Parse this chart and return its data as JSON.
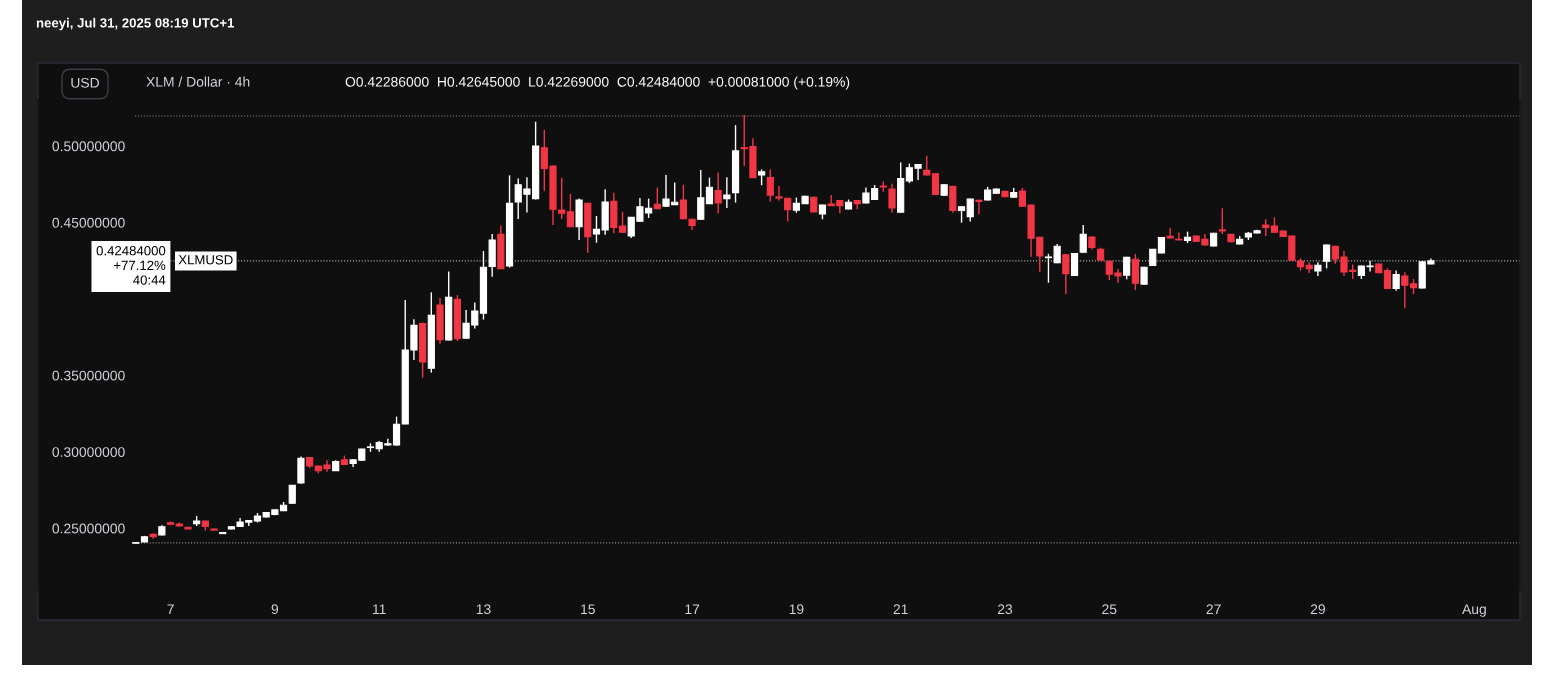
{
  "chart_data": {
    "type": "candlestick",
    "title": "XLM / Dollar · 4h",
    "subtitle": "O0.42286000  H0.42645000  L0.42269000  C0.42484000  +0.00081000 (+0.19%)",
    "annotations": [
      "neeyi, Jul 31, 2025 08:19 UTC+1",
      "USD",
      "0.42484000",
      "+77.12%",
      "40:44"
    ],
    "x": [
      "2025-07-06T08:00",
      "2025-07-06T12:00",
      "2025-07-06T16:00",
      "2025-07-06T20:00",
      "2025-07-07T00:00",
      "2025-07-07T04:00",
      "2025-07-07T08:00",
      "2025-07-07T12:00",
      "2025-07-07T16:00",
      "2025-07-07T20:00",
      "2025-07-08T00:00",
      "2025-07-08T04:00",
      "2025-07-08T08:00",
      "2025-07-08T12:00",
      "2025-07-08T16:00",
      "2025-07-08T20:00",
      "2025-07-09T00:00",
      "2025-07-09T04:00",
      "2025-07-09T08:00",
      "2025-07-09T12:00",
      "2025-07-09T16:00",
      "2025-07-09T20:00",
      "2025-07-10T00:00",
      "2025-07-10T04:00",
      "2025-07-10T08:00",
      "2025-07-10T12:00",
      "2025-07-10T16:00",
      "2025-07-10T20:00",
      "2025-07-11T00:00",
      "2025-07-11T04:00",
      "2025-07-11T08:00",
      "2025-07-11T12:00",
      "2025-07-11T16:00",
      "2025-07-11T20:00",
      "2025-07-12T00:00",
      "2025-07-12T04:00",
      "2025-07-12T08:00",
      "2025-07-12T12:00",
      "2025-07-12T16:00",
      "2025-07-12T20:00",
      "2025-07-13T00:00",
      "2025-07-13T04:00",
      "2025-07-13T08:00",
      "2025-07-13T12:00",
      "2025-07-13T16:00",
      "2025-07-13T20:00",
      "2025-07-14T00:00",
      "2025-07-14T04:00",
      "2025-07-14T08:00",
      "2025-07-14T12:00",
      "2025-07-14T16:00",
      "2025-07-14T20:00",
      "2025-07-15T00:00",
      "2025-07-15T04:00",
      "2025-07-15T08:00",
      "2025-07-15T12:00",
      "2025-07-15T16:00",
      "2025-07-15T20:00",
      "2025-07-16T00:00",
      "2025-07-16T04:00",
      "2025-07-16T08:00",
      "2025-07-16T12:00",
      "2025-07-16T16:00",
      "2025-07-16T20:00",
      "2025-07-17T00:00",
      "2025-07-17T04:00",
      "2025-07-17T08:00",
      "2025-07-17T12:00",
      "2025-07-17T16:00",
      "2025-07-17T20:00",
      "2025-07-18T00:00",
      "2025-07-18T04:00",
      "2025-07-18T08:00",
      "2025-07-18T12:00",
      "2025-07-18T16:00",
      "2025-07-18T20:00",
      "2025-07-19T00:00",
      "2025-07-19T04:00",
      "2025-07-19T08:00",
      "2025-07-19T12:00",
      "2025-07-19T16:00",
      "2025-07-19T20:00",
      "2025-07-20T00:00",
      "2025-07-20T04:00",
      "2025-07-20T08:00",
      "2025-07-20T12:00",
      "2025-07-20T16:00",
      "2025-07-20T20:00",
      "2025-07-21T00:00",
      "2025-07-21T04:00",
      "2025-07-21T08:00",
      "2025-07-21T12:00",
      "2025-07-21T16:00",
      "2025-07-21T20:00",
      "2025-07-22T00:00",
      "2025-07-22T04:00",
      "2025-07-22T08:00",
      "2025-07-22T12:00",
      "2025-07-22T16:00",
      "2025-07-22T20:00",
      "2025-07-23T00:00",
      "2025-07-23T04:00",
      "2025-07-23T08:00",
      "2025-07-23T12:00",
      "2025-07-23T16:00",
      "2025-07-23T20:00",
      "2025-07-24T00:00",
      "2025-07-24T04:00",
      "2025-07-24T08:00",
      "2025-07-24T12:00",
      "2025-07-24T16:00",
      "2025-07-24T20:00",
      "2025-07-25T00:00",
      "2025-07-25T04:00",
      "2025-07-25T08:00",
      "2025-07-25T12:00",
      "2025-07-25T16:00",
      "2025-07-25T20:00",
      "2025-07-26T00:00",
      "2025-07-26T04:00",
      "2025-07-26T08:00",
      "2025-07-26T12:00",
      "2025-07-26T16:00",
      "2025-07-26T20:00",
      "2025-07-27T00:00",
      "2025-07-27T04:00",
      "2025-07-27T08:00",
      "2025-07-27T12:00",
      "2025-07-27T16:00",
      "2025-07-27T20:00",
      "2025-07-28T00:00",
      "2025-07-28T04:00",
      "2025-07-28T08:00",
      "2025-07-28T12:00",
      "2025-07-28T16:00",
      "2025-07-28T20:00",
      "2025-07-29T00:00",
      "2025-07-29T04:00",
      "2025-07-29T08:00",
      "2025-07-29T12:00",
      "2025-07-29T16:00",
      "2025-07-29T20:00",
      "2025-07-30T00:00",
      "2025-07-30T04:00",
      "2025-07-30T08:00",
      "2025-07-30T12:00",
      "2025-07-30T16:00",
      "2025-07-30T20:00",
      "2025-07-31T00:00",
      "2025-07-31T04:00"
    ],
    "colors": [
      "#ffffff",
      "#ffffff",
      "#f23645",
      "#ffffff",
      "#f23645",
      "#f23645",
      "#f23645",
      "#ffffff",
      "#f23645",
      "#f23645",
      "#ffffff",
      "#ffffff",
      "#ffffff",
      "#ffffff",
      "#ffffff",
      "#ffffff",
      "#ffffff",
      "#ffffff",
      "#ffffff",
      "#ffffff",
      "#f23645",
      "#f23645",
      "#f23645",
      "#ffffff",
      "#f23645",
      "#ffffff",
      "#ffffff",
      "#ffffff",
      "#ffffff",
      "#ffffff",
      "#ffffff",
      "#ffffff",
      "#ffffff",
      "#f23645",
      "#ffffff",
      "#f23645",
      "#ffffff",
      "#f23645",
      "#ffffff",
      "#ffffff",
      "#ffffff",
      "#ffffff",
      "#f23645",
      "#ffffff",
      "#ffffff",
      "#ffffff",
      "#ffffff",
      "#f23645",
      "#f23645",
      "#f23645",
      "#f23645",
      "#ffffff",
      "#f23645",
      "#ffffff",
      "#ffffff",
      "#f23645",
      "#f23645",
      "#ffffff",
      "#ffffff",
      "#ffffff",
      "#f23645",
      "#ffffff",
      "#ffffff",
      "#f23645",
      "#f23645",
      "#ffffff",
      "#ffffff",
      "#f23645",
      "#ffffff",
      "#ffffff",
      "#f23645",
      "#f23645",
      "#ffffff",
      "#f23645",
      "#f23645",
      "#f23645",
      "#ffffff",
      "#ffffff",
      "#f23645",
      "#ffffff",
      "#f23645",
      "#f23645",
      "#ffffff",
      "#f23645",
      "#ffffff",
      "#ffffff",
      "#f23645",
      "#f23645",
      "#ffffff",
      "#ffffff",
      "#ffffff",
      "#f23645",
      "#f23645",
      "#ffffff",
      "#f23645",
      "#ffffff",
      "#ffffff",
      "#f23645",
      "#ffffff",
      "#ffffff",
      "#f23645",
      "#ffffff",
      "#f23645",
      "#f23645",
      "#f23645",
      "#ffffff",
      "#ffffff",
      "#f23645",
      "#ffffff",
      "#ffffff",
      "#f23645",
      "#f23645",
      "#f23645",
      "#f23645",
      "#ffffff",
      "#f23645",
      "#ffffff",
      "#ffffff",
      "#ffffff",
      "#f23645",
      "#f23645",
      "#ffffff",
      "#f23645",
      "#f23645",
      "#ffffff",
      "#f23645",
      "#f23645",
      "#ffffff",
      "#ffffff",
      "#ffffff",
      "#f23645",
      "#f23645",
      "#f23645",
      "#f23645",
      "#f23645",
      "#f23645",
      "#ffffff",
      "#ffffff",
      "#f23645",
      "#f23645",
      "#f23645",
      "#ffffff",
      "#ffffff",
      "#f23645",
      "#f23645",
      "#ffffff",
      "#f23645",
      "#f23645",
      "#ffffff",
      "#ffffff"
    ],
    "ohlc": [
      [
        0.2402,
        0.241,
        0.24,
        0.2406
      ],
      [
        0.241,
        0.245,
        0.2408,
        0.2444
      ],
      [
        0.246,
        0.2465,
        0.2432,
        0.2444
      ],
      [
        0.2456,
        0.252,
        0.2452,
        0.251
      ],
      [
        0.2535,
        0.2545,
        0.2522,
        0.2526
      ],
      [
        0.2528,
        0.2538,
        0.2512,
        0.2515
      ],
      [
        0.2506,
        0.2508,
        0.2494,
        0.2496
      ],
      [
        0.253,
        0.258,
        0.2515,
        0.2547
      ],
      [
        0.2547,
        0.255,
        0.2485,
        0.2512
      ],
      [
        0.2495,
        0.2497,
        0.2486,
        0.2488
      ],
      [
        0.2465,
        0.2474,
        0.2463,
        0.2472
      ],
      [
        0.2495,
        0.2512,
        0.2493,
        0.251
      ],
      [
        0.2512,
        0.2567,
        0.251,
        0.254
      ],
      [
        0.254,
        0.2552,
        0.2515,
        0.255
      ],
      [
        0.2548,
        0.26,
        0.2538,
        0.258
      ],
      [
        0.2574,
        0.2605,
        0.257,
        0.2602
      ],
      [
        0.259,
        0.2623,
        0.2585,
        0.262
      ],
      [
        0.2615,
        0.2672,
        0.2612,
        0.265
      ],
      [
        0.2663,
        0.2782,
        0.266,
        0.278
      ],
      [
        0.2796,
        0.297,
        0.2793,
        0.2958
      ],
      [
        0.2962,
        0.2966,
        0.2893,
        0.2907
      ],
      [
        0.2907,
        0.291,
        0.286,
        0.2877
      ],
      [
        0.2914,
        0.2945,
        0.287,
        0.289
      ],
      [
        0.2877,
        0.2945,
        0.2875,
        0.2936
      ],
      [
        0.2947,
        0.2975,
        0.2914,
        0.2917
      ],
      [
        0.2923,
        0.295,
        0.29,
        0.2947
      ],
      [
        0.2945,
        0.302,
        0.2942,
        0.3018
      ],
      [
        0.3028,
        0.3055,
        0.3,
        0.3032
      ],
      [
        0.3021,
        0.307,
        0.3,
        0.306
      ],
      [
        0.3045,
        0.3085,
        0.304,
        0.3053
      ],
      [
        0.3044,
        0.323,
        0.304,
        0.318
      ],
      [
        0.3182,
        0.3993,
        0.318,
        0.3666
      ],
      [
        0.3666,
        0.3867,
        0.36,
        0.3827
      ],
      [
        0.3838,
        0.3845,
        0.3485,
        0.3587
      ],
      [
        0.3547,
        0.4043,
        0.3518,
        0.3892
      ],
      [
        0.396,
        0.4006,
        0.3707,
        0.3733
      ],
      [
        0.3731,
        0.418,
        0.3728,
        0.401
      ],
      [
        0.3997,
        0.4025,
        0.3725,
        0.3739
      ],
      [
        0.3743,
        0.3927,
        0.374,
        0.384
      ],
      [
        0.3829,
        0.3976,
        0.3807,
        0.3921
      ],
      [
        0.3906,
        0.4313,
        0.3865,
        0.4207
      ],
      [
        0.4212,
        0.4424,
        0.4145,
        0.4385
      ],
      [
        0.4422,
        0.4479,
        0.4195,
        0.4198
      ],
      [
        0.4215,
        0.4808,
        0.4205,
        0.4625
      ],
      [
        0.4634,
        0.4788,
        0.4523,
        0.4747
      ],
      [
        0.4685,
        0.4795,
        0.4565,
        0.4719
      ],
      [
        0.4655,
        0.5159,
        0.465,
        0.5
      ],
      [
        0.4989,
        0.5105,
        0.4706,
        0.4854
      ],
      [
        0.4869,
        0.4872,
        0.4483,
        0.4586
      ],
      [
        0.4581,
        0.4793,
        0.4523,
        0.456
      ],
      [
        0.457,
        0.4686,
        0.4468,
        0.4472
      ],
      [
        0.4472,
        0.4657,
        0.4385,
        0.4647
      ],
      [
        0.4625,
        0.4628,
        0.4302,
        0.4407
      ],
      [
        0.4425,
        0.4542,
        0.4368,
        0.4455
      ],
      [
        0.4451,
        0.4717,
        0.442,
        0.4634
      ],
      [
        0.4638,
        0.4694,
        0.4429,
        0.4467
      ],
      [
        0.4477,
        0.457,
        0.4433,
        0.4436
      ],
      [
        0.4412,
        0.4536,
        0.4399,
        0.4534
      ],
      [
        0.4508,
        0.466,
        0.4505,
        0.4603
      ],
      [
        0.4562,
        0.4656,
        0.453,
        0.4593
      ],
      [
        0.4619,
        0.4728,
        0.4587,
        0.459
      ],
      [
        0.4606,
        0.481,
        0.4603,
        0.4653
      ],
      [
        0.4617,
        0.4761,
        0.4614,
        0.4632
      ],
      [
        0.4647,
        0.4745,
        0.4522,
        0.4525
      ],
      [
        0.4521,
        0.4524,
        0.445,
        0.4481
      ],
      [
        0.4521,
        0.4843,
        0.4518,
        0.4662
      ],
      [
        0.4623,
        0.4793,
        0.462,
        0.473
      ],
      [
        0.4708,
        0.4826,
        0.456,
        0.4628
      ],
      [
        0.4656,
        0.4795,
        0.4594,
        0.468
      ],
      [
        0.4695,
        0.5137,
        0.463,
        0.4968
      ],
      [
        0.4989,
        0.5203,
        0.4869,
        0.4983
      ],
      [
        0.4996,
        0.505,
        0.479,
        0.4793
      ],
      [
        0.481,
        0.4847,
        0.4743,
        0.4832
      ],
      [
        0.4793,
        0.4847,
        0.4636,
        0.4678
      ],
      [
        0.4667,
        0.4738,
        0.4643,
        0.466
      ],
      [
        0.4658,
        0.4661,
        0.4506,
        0.4584
      ],
      [
        0.458,
        0.4663,
        0.4563,
        0.4625
      ],
      [
        0.4623,
        0.4674,
        0.462,
        0.4671
      ],
      [
        0.4665,
        0.4668,
        0.4566,
        0.4569
      ],
      [
        0.4555,
        0.4617,
        0.4521,
        0.4614
      ],
      [
        0.4621,
        0.468,
        0.4608,
        0.461
      ],
      [
        0.4643,
        0.4646,
        0.456,
        0.461
      ],
      [
        0.4588,
        0.465,
        0.4585,
        0.4632
      ],
      [
        0.4643,
        0.4646,
        0.4586,
        0.4623
      ],
      [
        0.4627,
        0.4729,
        0.4624,
        0.4693
      ],
      [
        0.465,
        0.4745,
        0.4647,
        0.4721
      ],
      [
        0.4738,
        0.4768,
        0.4701,
        0.4732
      ],
      [
        0.4719,
        0.4754,
        0.4563,
        0.4595
      ],
      [
        0.4567,
        0.4893,
        0.4564,
        0.4787
      ],
      [
        0.4771,
        0.4885,
        0.4758,
        0.4858
      ],
      [
        0.4855,
        0.4882,
        0.4778,
        0.4879
      ],
      [
        0.4841,
        0.4937,
        0.4808,
        0.4811
      ],
      [
        0.4819,
        0.4822,
        0.4681,
        0.4684
      ],
      [
        0.4678,
        0.475,
        0.4675,
        0.4747
      ],
      [
        0.4736,
        0.4739,
        0.4563,
        0.4579
      ],
      [
        0.4579,
        0.4606,
        0.4499,
        0.4603
      ],
      [
        0.4538,
        0.4656,
        0.4506,
        0.4653
      ],
      [
        0.4645,
        0.4648,
        0.4554,
        0.4638
      ],
      [
        0.4647,
        0.4733,
        0.4644,
        0.4712
      ],
      [
        0.4691,
        0.4722,
        0.4688,
        0.4719
      ],
      [
        0.4703,
        0.4706,
        0.4665,
        0.4668
      ],
      [
        0.4666,
        0.4726,
        0.4663,
        0.4695
      ],
      [
        0.4706,
        0.4726,
        0.4603,
        0.4606
      ],
      [
        0.4614,
        0.4617,
        0.4276,
        0.4397
      ],
      [
        0.4403,
        0.4406,
        0.4178,
        0.4281
      ],
      [
        0.427,
        0.4295,
        0.4106,
        0.4274
      ],
      [
        0.4237,
        0.4359,
        0.4234,
        0.4344
      ],
      [
        0.4289,
        0.4292,
        0.4032,
        0.4165
      ],
      [
        0.4154,
        0.4299,
        0.4151,
        0.4296
      ],
      [
        0.4305,
        0.4483,
        0.4302,
        0.4422
      ],
      [
        0.4405,
        0.4408,
        0.4323,
        0.4337
      ],
      [
        0.4324,
        0.4335,
        0.4251,
        0.4254
      ],
      [
        0.4246,
        0.4249,
        0.4124,
        0.4161
      ],
      [
        0.4169,
        0.4195,
        0.4106,
        0.415
      ],
      [
        0.4155,
        0.4275,
        0.4128,
        0.4272
      ],
      [
        0.4259,
        0.4294,
        0.4058,
        0.4102
      ],
      [
        0.4097,
        0.421,
        0.4093,
        0.4207
      ],
      [
        0.4219,
        0.4327,
        0.4216,
        0.4324
      ],
      [
        0.4301,
        0.4404,
        0.4298,
        0.4401
      ],
      [
        0.441,
        0.4466,
        0.4396,
        0.4399
      ],
      [
        0.439,
        0.4435,
        0.4383,
        0.4386
      ],
      [
        0.4383,
        0.444,
        0.4365,
        0.4403
      ],
      [
        0.4411,
        0.4414,
        0.4374,
        0.4377
      ],
      [
        0.439,
        0.4425,
        0.435,
        0.4353
      ],
      [
        0.4346,
        0.4432,
        0.4343,
        0.4429
      ],
      [
        0.4451,
        0.4593,
        0.4425,
        0.4445
      ],
      [
        0.4422,
        0.4425,
        0.4371,
        0.4374
      ],
      [
        0.4359,
        0.4411,
        0.4356,
        0.439
      ],
      [
        0.4405,
        0.4438,
        0.4385,
        0.4429
      ],
      [
        0.4432,
        0.4452,
        0.4429,
        0.4446
      ],
      [
        0.4483,
        0.4521,
        0.4411,
        0.4468
      ],
      [
        0.4477,
        0.4534,
        0.4433,
        0.4436
      ],
      [
        0.4444,
        0.4447,
        0.4406,
        0.4409
      ],
      [
        0.4411,
        0.4414,
        0.4251,
        0.4254
      ],
      [
        0.4248,
        0.4265,
        0.4185,
        0.4211
      ],
      [
        0.422,
        0.424,
        0.4169,
        0.4198
      ],
      [
        0.4183,
        0.424,
        0.415,
        0.422
      ],
      [
        0.4246,
        0.4356,
        0.42,
        0.4353
      ],
      [
        0.4344,
        0.4347,
        0.423,
        0.4261
      ],
      [
        0.4274,
        0.4313,
        0.415,
        0.4176
      ],
      [
        0.4187,
        0.4225,
        0.413,
        0.418
      ],
      [
        0.4154,
        0.4218,
        0.413,
        0.4215
      ],
      [
        0.4211,
        0.425,
        0.418,
        0.4215
      ],
      [
        0.4228,
        0.4231,
        0.4169,
        0.4172
      ],
      [
        0.4185,
        0.42,
        0.4065,
        0.4068
      ],
      [
        0.4068,
        0.4185,
        0.4054,
        0.4159
      ],
      [
        0.415,
        0.4175,
        0.3939,
        0.4089
      ],
      [
        0.4099,
        0.413,
        0.4032,
        0.4074
      ],
      [
        0.4071,
        0.4245,
        0.4068,
        0.4242
      ],
      [
        0.42286,
        0.42645,
        0.42269,
        0.42484
      ]
    ],
    "xlim": [
      "2025-07-04T11:00",
      "2025-08-01T21:00"
    ],
    "xticks": [
      {
        "value": "2025-07-07",
        "label": "7"
      },
      {
        "value": "2025-07-09",
        "label": "9"
      },
      {
        "value": "2025-07-11",
        "label": "11"
      },
      {
        "value": "2025-07-13",
        "label": "13"
      },
      {
        "value": "2025-07-15",
        "label": "15"
      },
      {
        "value": "2025-07-17",
        "label": "17"
      },
      {
        "value": "2025-07-19",
        "label": "19"
      },
      {
        "value": "2025-07-21",
        "label": "21"
      },
      {
        "value": "2025-07-23",
        "label": "23"
      },
      {
        "value": "2025-07-25",
        "label": "25"
      },
      {
        "value": "2025-07-27",
        "label": "27"
      },
      {
        "value": "2025-07-29",
        "label": "29"
      },
      {
        "value": "2025-08-01",
        "label": "Aug"
      }
    ],
    "ylim": [
      0.2096,
      0.5301
    ],
    "yticks": [
      {
        "value": 0.25,
        "label": "0.25000000"
      },
      {
        "value": 0.3,
        "label": "0.30000000"
      },
      {
        "value": 0.35,
        "label": "0.35000000"
      },
      {
        "value": 0.45,
        "label": "0.45000000"
      },
      {
        "value": 0.5,
        "label": "0.50000000"
      }
    ],
    "ref_lines": [
      {
        "axis": "y",
        "value": 0.5196,
        "color": "#888888",
        "line_style": "dotted"
      },
      {
        "axis": "y",
        "value": 0.2404,
        "color": "#888888",
        "line_style": "dotted"
      },
      {
        "axis": "y",
        "value": 0.42484,
        "label": "XLMUSD",
        "color": "#aaaaaa",
        "line_style": "dotted"
      }
    ],
    "legend": false
  }
}
